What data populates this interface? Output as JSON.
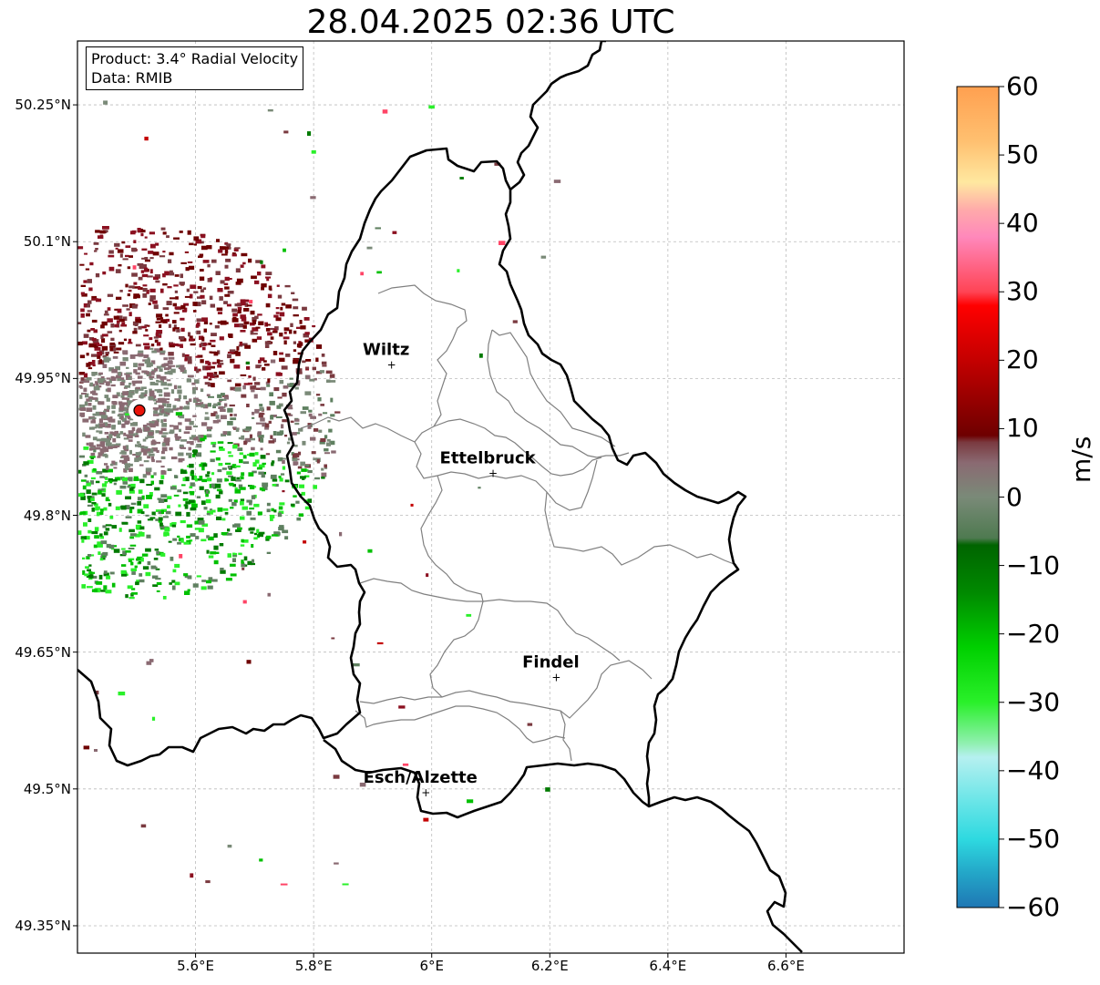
{
  "title": "28.04.2025 02:36 UTC",
  "info_box": {
    "product": "Product: 3.4° Radial Velocity",
    "source": "Data: RMIB"
  },
  "map": {
    "lon_range": [
      5.4,
      6.8
    ],
    "lat_range": [
      49.32,
      50.32
    ],
    "lat_ticks": [
      "50.25°N",
      "50.1°N",
      "49.95°N",
      "49.8°N",
      "49.65°N",
      "49.5°N",
      "49.35°N"
    ],
    "lon_ticks": [
      "5.6°E",
      "5.8°E",
      "6°E",
      "6.2°E",
      "6.4°E",
      "6.6°E"
    ],
    "grid": "dashed",
    "radar_site": {
      "lon": 5.505,
      "lat": 49.915,
      "color": "#e8140a"
    },
    "cities": [
      {
        "name": "Wiltz",
        "lon": 5.932,
        "lat": 49.966
      },
      {
        "name": "Ettelbruck",
        "lon": 6.104,
        "lat": 49.847
      },
      {
        "name": "Findel",
        "lon": 6.211,
        "lat": 49.623
      },
      {
        "name": "Esch/Alzette",
        "lon": 5.99,
        "lat": 49.497
      }
    ]
  },
  "colorbar": {
    "label": "m/s",
    "min": -60,
    "max": 60,
    "ticks": [
      "60",
      "50",
      "40",
      "30",
      "20",
      "10",
      "0",
      "−10",
      "−20",
      "−30",
      "−40",
      "−50",
      "−60"
    ],
    "color_stops": [
      {
        "v": -60,
        "c": "#1f77b4"
      },
      {
        "v": -55,
        "c": "#23a6c8"
      },
      {
        "v": -50,
        "c": "#2ed9e0"
      },
      {
        "v": -44,
        "c": "#6fe6e8"
      },
      {
        "v": -38,
        "c": "#b6f0f0"
      },
      {
        "v": -36,
        "c": "#90f0b0"
      },
      {
        "v": -30,
        "c": "#2af02a"
      },
      {
        "v": -22,
        "c": "#00d000"
      },
      {
        "v": -14,
        "c": "#008a00"
      },
      {
        "v": -7,
        "c": "#006400"
      },
      {
        "v": -6,
        "c": "#4e7a50"
      },
      {
        "v": 0,
        "c": "#7a8a78"
      },
      {
        "v": 5,
        "c": "#8a6a72"
      },
      {
        "v": 8,
        "c": "#7a3a40"
      },
      {
        "v": 9,
        "c": "#6e0000"
      },
      {
        "v": 20,
        "c": "#c40000"
      },
      {
        "v": 28,
        "c": "#ff0000"
      },
      {
        "v": 30,
        "c": "#ff4455"
      },
      {
        "v": 38,
        "c": "#ff88bb"
      },
      {
        "v": 42,
        "c": "#ffaaaa"
      },
      {
        "v": 46,
        "c": "#ffe8a0"
      },
      {
        "v": 52,
        "c": "#ffc070"
      },
      {
        "v": 60,
        "c": "#ffa050"
      }
    ]
  },
  "velocity_palette": [
    "#6e0000",
    "#8b1020",
    "#7a3a40",
    "#8a6a72",
    "#7a8a78",
    "#5f8060",
    "#007a00",
    "#00c000",
    "#2af02a",
    "#ff4466",
    "#c40000"
  ]
}
